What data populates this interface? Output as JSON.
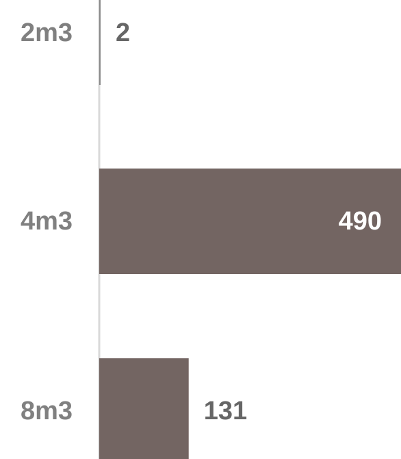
{
  "chart_data": {
    "type": "bar",
    "orientation": "horizontal",
    "categories": [
      "2m3",
      "4m3",
      "8m3"
    ],
    "values": [
      2,
      490,
      131
    ],
    "title": "",
    "xlabel": "",
    "ylabel": "",
    "grid": false,
    "legend": "none",
    "colors": {
      "bar": "#736562",
      "axis": "#d9d9d9",
      "category_text": "#808080",
      "value_text_outside": "#666666",
      "value_text_inside": "#ffffff"
    }
  }
}
